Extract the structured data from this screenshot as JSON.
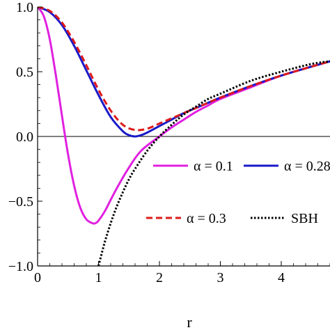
{
  "chart_data": {
    "type": "line",
    "title": "",
    "xlabel": "r",
    "ylabel": "",
    "xlim": [
      0,
      4.8
    ],
    "ylim": [
      -1.0,
      1.0
    ],
    "x_ticks": [
      0,
      1,
      2,
      3,
      4
    ],
    "y_ticks": [
      -1.0,
      -0.5,
      0.0,
      0.5,
      1.0
    ],
    "x_tick_labels": [
      "0",
      "1",
      "2",
      "3",
      "4"
    ],
    "y_tick_labels": [
      "−1.0",
      "−0.5",
      "0.0",
      "0.5",
      "1.0"
    ],
    "grid": false,
    "reference_line": 0.0,
    "legend_position": "lower-right",
    "series": [
      {
        "name": "α = 0.1",
        "color": "#e020e0",
        "dash": "solid",
        "x": [
          0,
          0.1,
          0.2,
          0.3,
          0.4,
          0.5,
          0.6,
          0.7,
          0.8,
          0.9,
          0.95,
          1.0,
          1.1,
          1.2,
          1.3,
          1.5,
          1.7,
          2.0,
          2.2,
          2.4,
          2.6,
          2.8,
          3.0,
          3.5,
          4.0,
          4.5,
          4.8
        ],
        "y": [
          1.0,
          0.93,
          0.75,
          0.47,
          0.16,
          -0.14,
          -0.38,
          -0.55,
          -0.64,
          -0.67,
          -0.67,
          -0.65,
          -0.58,
          -0.49,
          -0.4,
          -0.24,
          -0.11,
          0.0,
          0.07,
          0.13,
          0.19,
          0.24,
          0.29,
          0.38,
          0.47,
          0.54,
          0.58
        ]
      },
      {
        "name": "α = 0.28",
        "color": "#1a1ac8",
        "dash": "solid",
        "x": [
          0,
          0.2,
          0.4,
          0.6,
          0.8,
          1.0,
          1.2,
          1.4,
          1.5,
          1.6,
          1.7,
          1.8,
          2.0,
          2.2,
          2.4,
          2.6,
          2.8,
          3.0,
          3.5,
          4.0,
          4.5,
          4.8
        ],
        "y": [
          1.0,
          0.96,
          0.86,
          0.7,
          0.51,
          0.32,
          0.15,
          0.04,
          0.01,
          0.0,
          0.01,
          0.03,
          0.08,
          0.13,
          0.18,
          0.22,
          0.26,
          0.3,
          0.39,
          0.47,
          0.54,
          0.58
        ]
      },
      {
        "name": "α = 0.3",
        "color": "#dd1a1a",
        "dash": "dashed",
        "x": [
          0,
          0.2,
          0.4,
          0.6,
          0.8,
          1.0,
          1.2,
          1.4,
          1.6,
          1.8,
          2.0,
          2.2,
          2.4,
          2.6,
          2.8,
          3.0,
          3.5,
          4.0,
          4.5,
          4.8
        ],
        "y": [
          1.0,
          0.97,
          0.88,
          0.73,
          0.55,
          0.36,
          0.2,
          0.09,
          0.05,
          0.06,
          0.1,
          0.14,
          0.18,
          0.22,
          0.26,
          0.3,
          0.39,
          0.47,
          0.54,
          0.58
        ]
      },
      {
        "name": "SBH",
        "color": "#000000",
        "dash": "dotted",
        "x": [
          1.0,
          1.1,
          1.2,
          1.3,
          1.4,
          1.5,
          1.6,
          1.8,
          2.0,
          2.2,
          2.4,
          2.6,
          2.8,
          3.0,
          3.5,
          4.0,
          4.5,
          4.8
        ],
        "y": [
          -1.0,
          -0.82,
          -0.67,
          -0.54,
          -0.43,
          -0.33,
          -0.25,
          -0.11,
          0.0,
          0.09,
          0.17,
          0.23,
          0.29,
          0.33,
          0.43,
          0.5,
          0.56,
          0.58
        ]
      }
    ]
  }
}
